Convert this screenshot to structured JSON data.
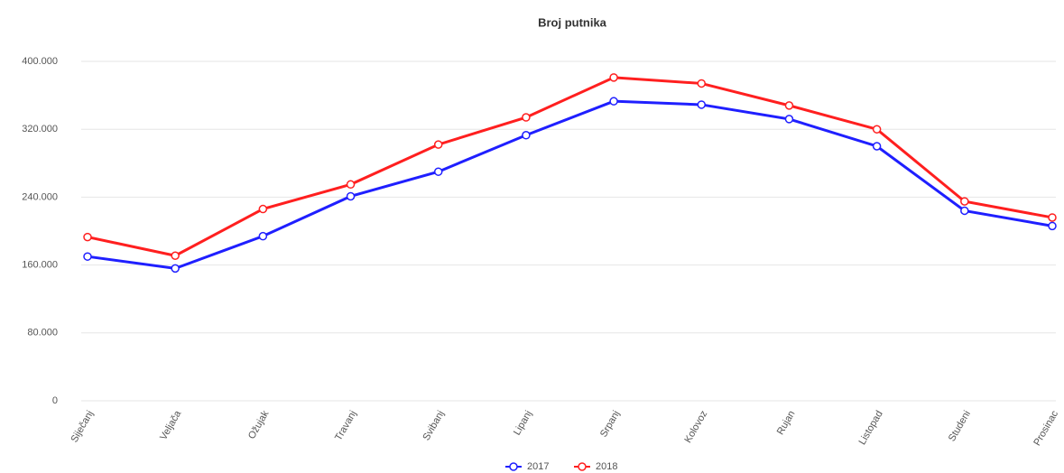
{
  "chart_data": {
    "type": "line",
    "title": "Broj putnika",
    "categories": [
      "Siječanj",
      "Veljača",
      "Ožujak",
      "Travanj",
      "Svibanj",
      "Lipanj",
      "Srpanj",
      "Kolovoz",
      "Rujan",
      "Listopad",
      "Studeni",
      "Prosinac"
    ],
    "series": [
      {
        "name": "2017",
        "color": "#1f1fff",
        "values": [
          170000,
          156000,
          194000,
          241000,
          270000,
          313000,
          353000,
          349000,
          332000,
          300000,
          224000,
          206000
        ]
      },
      {
        "name": "2018",
        "color": "#ff1f1f",
        "values": [
          193000,
          171000,
          226000,
          255000,
          302000,
          334000,
          381000,
          374000,
          348000,
          320000,
          235000,
          216000
        ]
      }
    ],
    "ylim": [
      0,
      400000
    ],
    "yticks": [
      0,
      {
        "value": 80000,
        "label": "80.000"
      },
      {
        "value": 160000,
        "label": "160.000"
      },
      {
        "value": 240000,
        "label": "240.000"
      },
      {
        "value": 320000,
        "label": "320.000"
      },
      {
        "value": 400000,
        "label": "400.000"
      }
    ],
    "grid": true
  }
}
